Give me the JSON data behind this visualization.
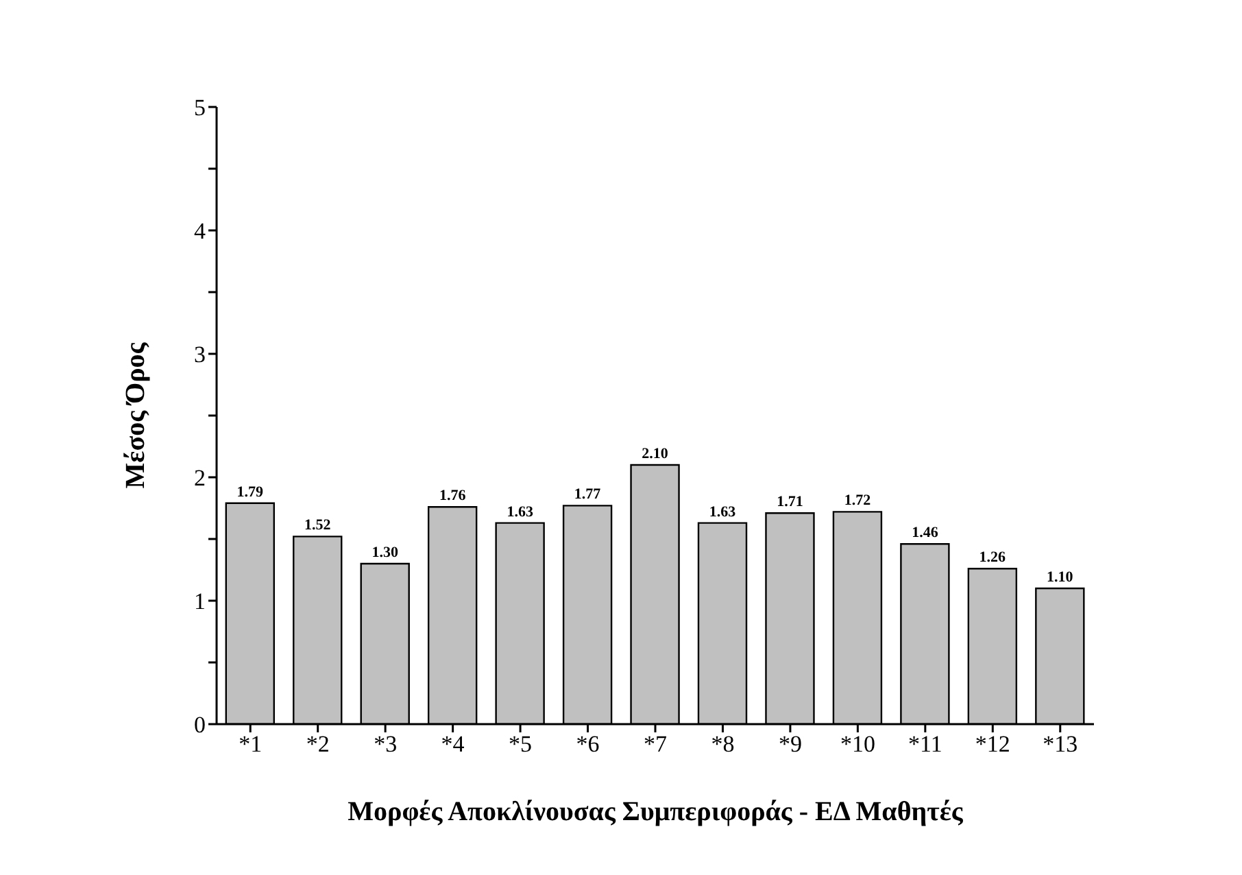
{
  "chart_data": {
    "type": "bar",
    "xlabel": "Μορφές Αποκλίνουσας Συμπεριφοράς - ΕΔ Μαθητές",
    "ylabel": "Μέσος Όρος",
    "categories": [
      "*1",
      "*2",
      "*3",
      "*4",
      "*5",
      "*6",
      "*7",
      "*8",
      "*9",
      "*10",
      "*11",
      "*12",
      "*13"
    ],
    "values": [
      1.79,
      1.52,
      1.3,
      1.76,
      1.63,
      1.77,
      2.1,
      1.63,
      1.71,
      1.72,
      1.46,
      1.26,
      1.1
    ],
    "value_labels": [
      "1.79",
      "1.52",
      "1.30",
      "1.76",
      "1.63",
      "1.77",
      "2.10",
      "1.63",
      "1.71",
      "1.72",
      "1.46",
      "1.26",
      "1.10"
    ],
    "color": "#c0c0c0",
    "ylim": [
      0,
      5
    ],
    "yticks": [
      0,
      {
        "value": 0.5,
        "label": null
      },
      1,
      {
        "value": 1.5,
        "label": null
      },
      2,
      {
        "value": 2.5,
        "label": null
      },
      3,
      {
        "value": 3.5,
        "label": null
      },
      4,
      {
        "value": 4.5,
        "label": null
      },
      5
    ],
    "grid": false,
    "legend": false
  }
}
